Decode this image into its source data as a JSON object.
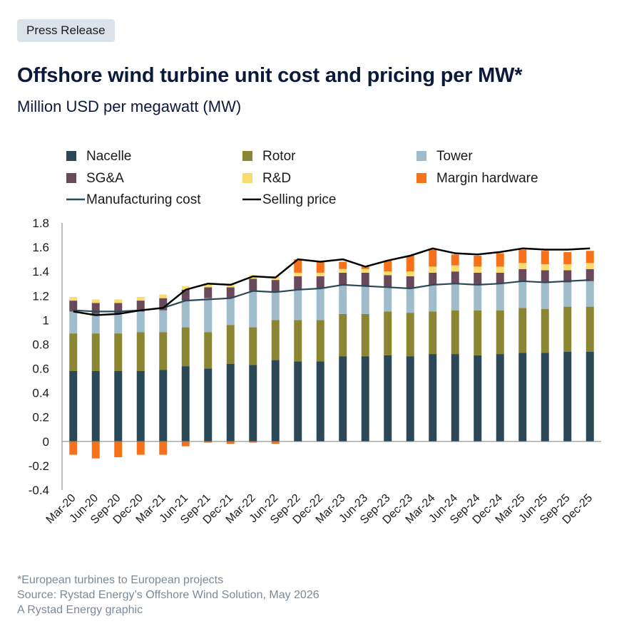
{
  "badge": "Press Release",
  "title": "Offshore wind turbine unit cost and pricing per MW*",
  "subtitle": "Million USD per megawatt (MW)",
  "footer": {
    "note": "*European turbines to European projects",
    "source": "Source: Rystad Energy’s Offshore Wind Solution, May 2026",
    "credit": "A Rystad Energy graphic"
  },
  "chart_data": {
    "type": "bar",
    "stacked": true,
    "grid": false,
    "legend_position": "top",
    "ylim": [
      -0.4,
      1.8
    ],
    "y_ticks": [
      -0.4,
      -0.2,
      0,
      0.2,
      0.4,
      0.6,
      0.8,
      1,
      1.2,
      1.4,
      1.6,
      1.8
    ],
    "y_tick_labels": [
      "-0.4",
      "-0.2",
      "0",
      "0.2",
      "0.4",
      "0.6",
      "0.8",
      "1",
      "1.2",
      "1.4",
      "1.6",
      "1.8"
    ],
    "categories": [
      "Mar-20",
      "Jun-20",
      "Sep-20",
      "Dec-20",
      "Mar-21",
      "Jun-21",
      "Sep-21",
      "Dec-21",
      "Mar-22",
      "Jun-22",
      "Sep-22",
      "Dec-22",
      "Mar-23",
      "Jun-23",
      "Sep-23",
      "Dec-23",
      "Mar-24",
      "Jun-24",
      "Sep-24",
      "Dec-24",
      "Mar-25",
      "Jun-25",
      "Sep-25",
      "Dec-25"
    ],
    "series": [
      {
        "name": "Nacelle",
        "color": "#2a4858",
        "values": [
          0.58,
          0.58,
          0.58,
          0.58,
          0.59,
          0.62,
          0.6,
          0.64,
          0.63,
          0.67,
          0.66,
          0.66,
          0.7,
          0.7,
          0.71,
          0.7,
          0.72,
          0.72,
          0.71,
          0.72,
          0.73,
          0.73,
          0.74,
          0.74
        ]
      },
      {
        "name": "Rotor",
        "color": "#8a8632",
        "values": [
          0.31,
          0.31,
          0.31,
          0.32,
          0.31,
          0.32,
          0.3,
          0.32,
          0.31,
          0.33,
          0.34,
          0.34,
          0.35,
          0.35,
          0.36,
          0.36,
          0.35,
          0.36,
          0.37,
          0.36,
          0.37,
          0.36,
          0.37,
          0.37
        ]
      },
      {
        "name": "Tower",
        "color": "#9fbccd",
        "values": [
          0.18,
          0.16,
          0.16,
          0.17,
          0.18,
          0.22,
          0.28,
          0.22,
          0.3,
          0.23,
          0.25,
          0.26,
          0.24,
          0.23,
          0.2,
          0.2,
          0.22,
          0.22,
          0.21,
          0.22,
          0.22,
          0.22,
          0.2,
          0.21
        ]
      },
      {
        "name": "SG&A",
        "color": "#6a4a5a",
        "values": [
          0.09,
          0.09,
          0.09,
          0.09,
          0.1,
          0.09,
          0.09,
          0.09,
          0.1,
          0.1,
          0.11,
          0.1,
          0.1,
          0.11,
          0.1,
          0.1,
          0.1,
          0.1,
          0.1,
          0.09,
          0.1,
          0.1,
          0.1,
          0.1
        ]
      },
      {
        "name": "R&D",
        "color": "#f9dc6e",
        "values": [
          0.03,
          0.03,
          0.03,
          0.03,
          0.03,
          0.03,
          0.03,
          0.03,
          0.03,
          0.03,
          0.03,
          0.03,
          0.03,
          0.03,
          0.03,
          0.04,
          0.05,
          0.05,
          0.05,
          0.05,
          0.05,
          0.05,
          0.05,
          0.05
        ]
      },
      {
        "name": "Margin hardware",
        "color": "#f7711b",
        "values": [
          -0.11,
          -0.14,
          -0.13,
          -0.11,
          -0.11,
          -0.04,
          -0.01,
          -0.02,
          -0.01,
          -0.02,
          0.11,
          0.09,
          0.06,
          0.02,
          0.09,
          0.13,
          0.14,
          0.09,
          0.09,
          0.11,
          0.11,
          0.11,
          0.1,
          0.1
        ]
      }
    ],
    "lines": [
      {
        "name": "Manufacturing cost",
        "color": "#2a4858",
        "values": [
          1.08,
          1.07,
          1.07,
          1.08,
          1.1,
          1.16,
          1.17,
          1.18,
          1.24,
          1.23,
          1.25,
          1.26,
          1.29,
          1.28,
          1.27,
          1.26,
          1.29,
          1.3,
          1.29,
          1.3,
          1.32,
          1.31,
          1.32,
          1.33
        ]
      },
      {
        "name": "Selling price",
        "color": "#000000",
        "values": [
          1.07,
          1.04,
          1.05,
          1.08,
          1.1,
          1.25,
          1.3,
          1.29,
          1.36,
          1.35,
          1.5,
          1.48,
          1.5,
          1.44,
          1.49,
          1.53,
          1.59,
          1.55,
          1.54,
          1.56,
          1.59,
          1.58,
          1.58,
          1.59
        ]
      }
    ]
  }
}
